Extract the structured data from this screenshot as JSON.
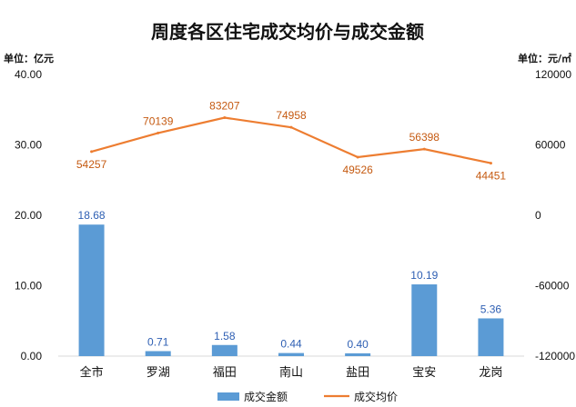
{
  "chart_data": {
    "type": "bar",
    "title": "周度各区住宅成交均价与成交金额",
    "left_unit": "单位：亿元",
    "right_unit": "单位：元/㎡",
    "categories": [
      "全市",
      "罗湖",
      "福田",
      "南山",
      "盐田",
      "宝安",
      "龙岗"
    ],
    "y_left": {
      "range": [
        0,
        40
      ],
      "ticks": [
        "0.00",
        "10.00",
        "20.00",
        "30.00",
        "40.00"
      ]
    },
    "y_right": {
      "range": [
        -120000,
        120000
      ],
      "ticks": [
        "-120000",
        "-60000",
        "0",
        "60000",
        "120000"
      ]
    },
    "series": [
      {
        "name": "成交金额",
        "type": "bar",
        "axis": "left",
        "color": "#5b9bd5",
        "values": [
          18.68,
          0.71,
          1.58,
          0.44,
          0.4,
          10.19,
          5.36
        ],
        "labels": [
          "18.68",
          "0.71",
          "1.58",
          "0.44",
          "0.40",
          "10.19",
          "5.36"
        ]
      },
      {
        "name": "成交均价",
        "type": "line",
        "axis": "right",
        "color": "#ed7d31",
        "values": [
          54257,
          70139,
          83207,
          74958,
          49526,
          56398,
          44451
        ],
        "labels": [
          "54257",
          "70139",
          "83207",
          "74958",
          "49526",
          "56398",
          "44451"
        ]
      }
    ],
    "grid": false,
    "legend": "bottom"
  }
}
